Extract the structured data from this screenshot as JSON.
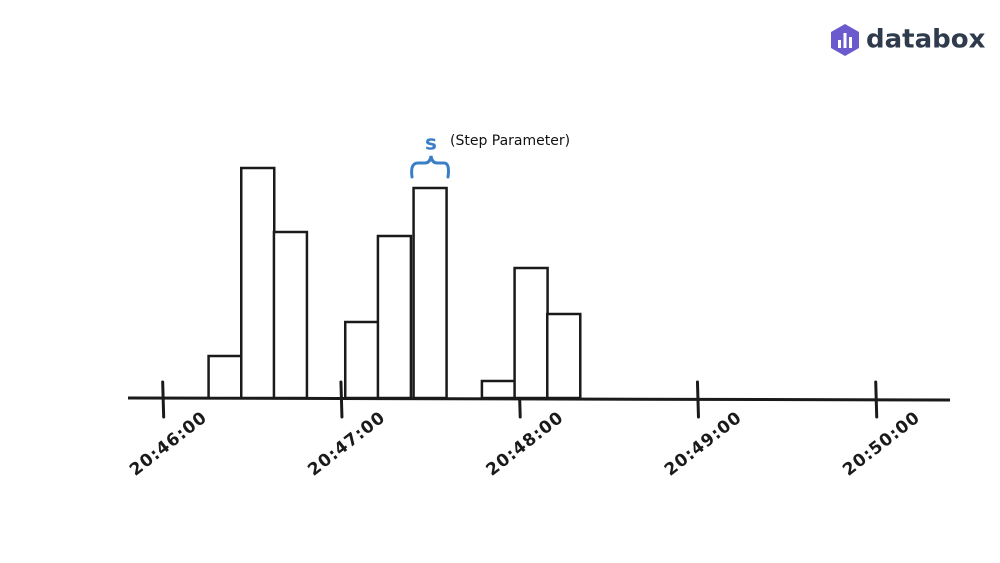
{
  "brand": "databox",
  "chart_data": {
    "type": "bar",
    "annotation_symbol": "s",
    "annotation": "(Step Parameter)",
    "x": [
      74781,
      74792,
      74803,
      74827,
      74838,
      74850,
      74873,
      74884,
      74895
    ],
    "values": [
      42,
      230,
      166,
      76,
      162,
      210,
      17,
      130,
      84
    ],
    "xlim": [
      74749,
      75025
    ],
    "xticks": [
      {
        "value": 74760,
        "label": "20:46:00"
      },
      {
        "value": 74820,
        "label": "20:47:00"
      },
      {
        "value": 74880,
        "label": "20:48:00"
      },
      {
        "value": 74940,
        "label": "20:49:00"
      },
      {
        "value": 75000,
        "label": "20:50:00"
      }
    ],
    "ylim": [
      0,
      250
    ],
    "color": "#ffffff",
    "annotation_color": "#3a7fc6"
  }
}
